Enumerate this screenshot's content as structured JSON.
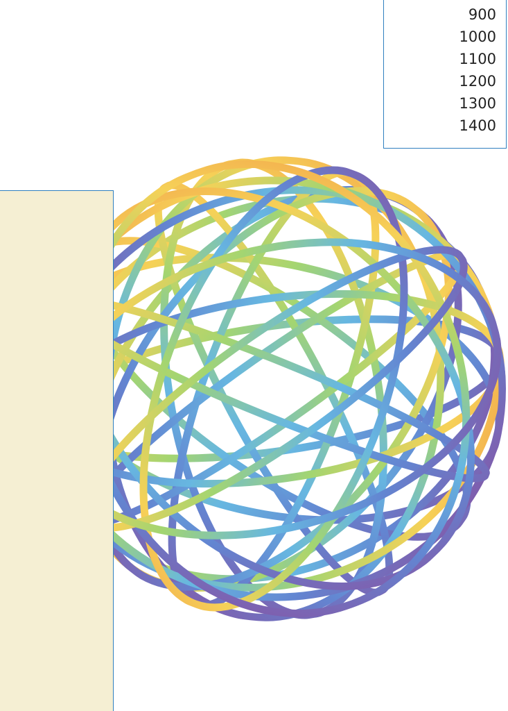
{
  "number_list": {
    "items": [
      "900",
      "1000",
      "1100",
      "1200",
      "1300",
      "1400"
    ]
  }
}
